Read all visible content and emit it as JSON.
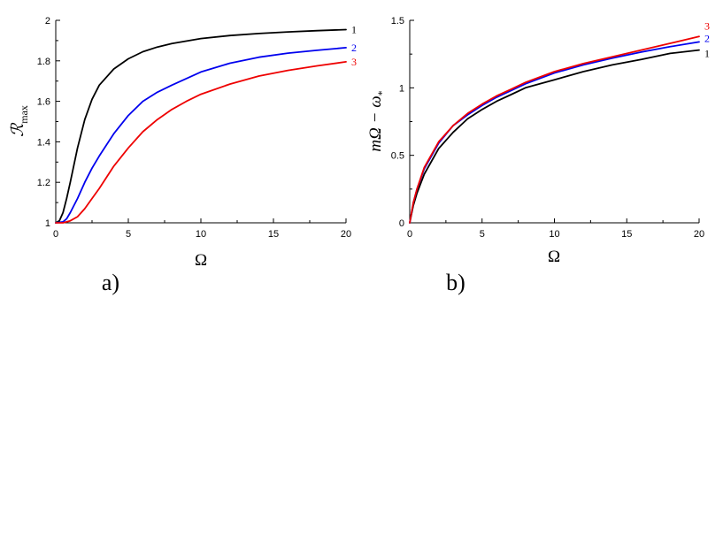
{
  "chart_data": [
    {
      "type": "line",
      "panel_label": "a)",
      "xlabel": "Ω",
      "ylabel_main": "ℛ",
      "ylabel_sub": "max",
      "xlim": [
        0,
        20
      ],
      "ylim": [
        1,
        2
      ],
      "xticks": [
        0,
        5,
        10,
        15,
        20
      ],
      "yticks": [
        1,
        1.2,
        1.4,
        1.6,
        1.8,
        2
      ],
      "ytick_labels": [
        "1",
        "1.2",
        "1.4",
        "1.6",
        "1.8",
        "2"
      ],
      "series": [
        {
          "name": "1",
          "color": "#000000",
          "x": [
            0,
            0.25,
            0.5,
            0.75,
            1,
            1.5,
            2,
            2.5,
            3,
            4,
            5,
            6,
            7,
            8,
            10,
            12,
            14,
            16,
            18,
            20
          ],
          "y": [
            1.0,
            1.01,
            1.05,
            1.12,
            1.2,
            1.37,
            1.51,
            1.61,
            1.68,
            1.76,
            1.81,
            1.845,
            1.868,
            1.885,
            1.91,
            1.925,
            1.935,
            1.943,
            1.949,
            1.954
          ]
        },
        {
          "name": "2",
          "color": "#0000ee",
          "x": [
            0,
            0.5,
            0.75,
            1,
            1.5,
            2,
            2.5,
            3,
            4,
            5,
            6,
            7,
            8,
            10,
            12,
            14,
            16,
            18,
            20
          ],
          "y": [
            1.0,
            1.005,
            1.02,
            1.05,
            1.12,
            1.2,
            1.27,
            1.33,
            1.44,
            1.53,
            1.6,
            1.645,
            1.68,
            1.745,
            1.788,
            1.818,
            1.838,
            1.852,
            1.865
          ]
        },
        {
          "name": "3",
          "color": "#ee0000",
          "x": [
            0,
            0.5,
            1,
            1.5,
            2,
            2.5,
            3,
            4,
            5,
            6,
            7,
            8,
            9,
            10,
            12,
            14,
            16,
            18,
            20
          ],
          "y": [
            1.0,
            1.0,
            1.01,
            1.03,
            1.07,
            1.12,
            1.17,
            1.28,
            1.37,
            1.45,
            1.51,
            1.56,
            1.6,
            1.635,
            1.685,
            1.725,
            1.753,
            1.775,
            1.795
          ]
        }
      ]
    },
    {
      "type": "line",
      "panel_label": "b)",
      "xlabel": "Ω",
      "ylabel_main": "mΩ − ω",
      "ylabel_sub": "*",
      "xlim": [
        0,
        20
      ],
      "ylim": [
        0,
        1.5
      ],
      "xticks": [
        0,
        5,
        10,
        15,
        20
      ],
      "yticks": [
        0,
        0.5,
        1,
        1.5
      ],
      "ytick_labels": [
        "0",
        "0.5",
        "1",
        "1.5"
      ],
      "series": [
        {
          "name": "1",
          "color": "#000000",
          "x": [
            0,
            0.25,
            0.5,
            1,
            2,
            3,
            4,
            5,
            6,
            7,
            8,
            9,
            10,
            12,
            14,
            16,
            18,
            20
          ],
          "y": [
            0,
            0.13,
            0.22,
            0.36,
            0.55,
            0.67,
            0.77,
            0.84,
            0.9,
            0.95,
            1.0,
            1.03,
            1.06,
            1.12,
            1.17,
            1.21,
            1.255,
            1.28
          ]
        },
        {
          "name": "2",
          "color": "#0000ee",
          "x": [
            0,
            0.25,
            0.5,
            1,
            2,
            3,
            4,
            5,
            6,
            7,
            8,
            9,
            10,
            12,
            14,
            16,
            18,
            20
          ],
          "y": [
            0,
            0.15,
            0.25,
            0.4,
            0.59,
            0.72,
            0.8,
            0.87,
            0.93,
            0.98,
            1.03,
            1.07,
            1.11,
            1.17,
            1.22,
            1.265,
            1.305,
            1.34
          ]
        },
        {
          "name": "3",
          "color": "#ee0000",
          "x": [
            0,
            0.25,
            0.5,
            1,
            2,
            3,
            4,
            5,
            6,
            7,
            8,
            9,
            10,
            12,
            14,
            16,
            18,
            20
          ],
          "y": [
            0,
            0.15,
            0.25,
            0.41,
            0.6,
            0.72,
            0.81,
            0.88,
            0.94,
            0.99,
            1.04,
            1.08,
            1.12,
            1.18,
            1.23,
            1.28,
            1.33,
            1.38
          ]
        }
      ]
    }
  ]
}
